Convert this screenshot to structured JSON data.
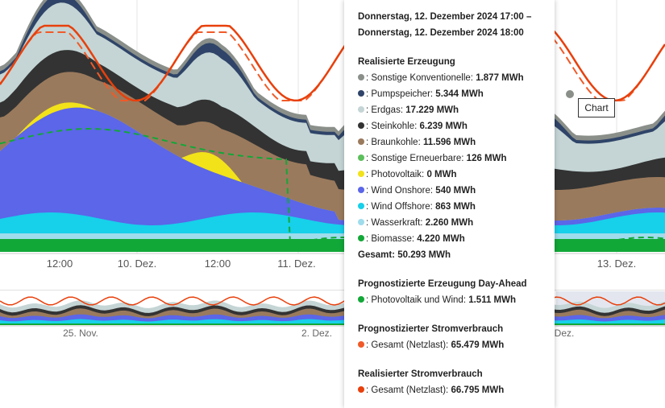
{
  "colors": {
    "sonstige_konventionelle": "#8a8f8a",
    "pumpspeicher": "#2f4468",
    "erdgas": "#c5d5d5",
    "steinkohle": "#333333",
    "braunkohle": "#9a7a5d",
    "sonstige_erneuerbare": "#5cbf5c",
    "photovoltaik": "#f2e21a",
    "wind_onshore": "#5b66e8",
    "wind_offshore": "#17d0ea",
    "wasserkraft": "#9fdcec",
    "biomasse": "#12a838",
    "forecast_day_ahead": "#12a838",
    "consumption_forecast": "#f05a28",
    "consumption_actual": "#e8400c"
  },
  "chart_data": {
    "type": "area",
    "x_axis_labels": [
      "12:00",
      "10. Dez.",
      "12:00",
      "11. Dez.",
      "13. Dez."
    ],
    "navigator_labels": [
      "25. Nov.",
      "2. Dez.",
      "Dez."
    ],
    "unit": "MWh",
    "stack_order": [
      "Biomasse",
      "Wasserkraft",
      "Wind Offshore",
      "Wind Onshore",
      "Photovoltaik",
      "Sonstige Erneuerbare",
      "Braunkohle",
      "Steinkohle",
      "Erdgas",
      "Pumpspeicher",
      "Sonstige Konventionelle"
    ],
    "selected_point": {
      "time": "Donnerstag, 12. Dezember 2024 17:00",
      "series": [
        {
          "name": "Sonstige Konventionelle",
          "value": 1877
        },
        {
          "name": "Pumpspeicher",
          "value": 5344
        },
        {
          "name": "Erdgas",
          "value": 17229
        },
        {
          "name": "Steinkohle",
          "value": 6239
        },
        {
          "name": "Braunkohle",
          "value": 11596
        },
        {
          "name": "Sonstige Erneuerbare",
          "value": 126
        },
        {
          "name": "Photovoltaik",
          "value": 0
        },
        {
          "name": "Wind Onshore",
          "value": 540
        },
        {
          "name": "Wind Offshore",
          "value": 863
        },
        {
          "name": "Wasserkraft",
          "value": 2260
        },
        {
          "name": "Biomasse",
          "value": 4220
        }
      ],
      "gesamt_erzeugung": 50293,
      "prognose_pv_wind_day_ahead": 1511,
      "prognose_verbrauch": 65479,
      "realisierter_verbrauch": 66795
    }
  },
  "tooltip": {
    "header_line1": "Donnerstag, 12. Dezember 2024 17:00 –",
    "header_line2": "Donnerstag, 12. Dezember 2024 18:00",
    "section_realisiert": "Realisierte Erzeugung",
    "rows": [
      {
        "label": ": Sonstige Konventionelle: ",
        "value": "1.877 MWh",
        "color": "#8a8f8a"
      },
      {
        "label": ": Pumpspeicher: ",
        "value": "5.344 MWh",
        "color": "#2f4468"
      },
      {
        "label": ": Erdgas: ",
        "value": "17.229 MWh",
        "color": "#c5d5d5"
      },
      {
        "label": ": Steinkohle: ",
        "value": "6.239 MWh",
        "color": "#333333"
      },
      {
        "label": ": Braunkohle: ",
        "value": "11.596 MWh",
        "color": "#9a7a5d"
      },
      {
        "label": ": Sonstige Erneuerbare: ",
        "value": "126 MWh",
        "color": "#5cbf5c"
      },
      {
        "label": ": Photovoltaik: ",
        "value": "0 MWh",
        "color": "#f2e21a"
      },
      {
        "label": ": Wind Onshore: ",
        "value": "540 MWh",
        "color": "#5b66e8"
      },
      {
        "label": ": Wind Offshore: ",
        "value": "863 MWh",
        "color": "#17d0ea"
      },
      {
        "label": ": Wasserkraft: ",
        "value": "2.260 MWh",
        "color": "#9fdcec"
      },
      {
        "label": ": Biomasse: ",
        "value": "4.220 MWh",
        "color": "#12a838"
      }
    ],
    "gesamt_label": "Gesamt: ",
    "gesamt_value": "50.293 MWh",
    "section_prognose": "Prognostizierte Erzeugung Day-Ahead",
    "prognose_row": {
      "label": ": Photovoltaik und Wind: ",
      "value": "1.511 MWh",
      "color": "#12a838"
    },
    "section_verbrauch_prognose": "Prognostizierter Stromverbrauch",
    "verbrauch_prognose_row": {
      "label": ": Gesamt (Netzlast): ",
      "value": "65.479 MWh",
      "color": "#f05a28"
    },
    "section_verbrauch_real": "Realisierter Stromverbrauch",
    "verbrauch_real_row": {
      "label": ": Gesamt (Netzlast): ",
      "value": "66.795 MWh",
      "color": "#e8400c"
    }
  },
  "chart_button": {
    "label": "Chart"
  }
}
